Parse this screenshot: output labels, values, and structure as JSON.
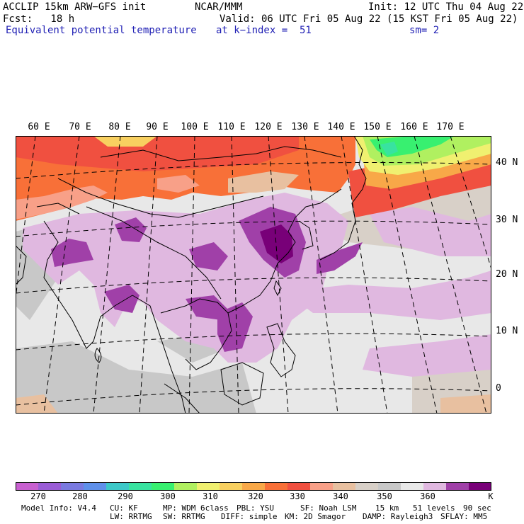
{
  "header": {
    "model": "ACCLIP 15km ARW−GFS init",
    "org": "NCAR/MMM",
    "init": "Init: 12 UTC Thu 04 Aug 22",
    "fcst": "Fcst:   18 h",
    "valid": "Valid: 06 UTC Fri 05 Aug 22 (15 KST Fri 05 Aug 22)",
    "field": "Equivalent potential temperature",
    "level": "at k−index =  51",
    "smooth": "sm= 2"
  },
  "map": {
    "lon_labels": [
      "60 E",
      "70 E",
      "80 E",
      "90 E",
      "100 E",
      "110 E",
      "120 E",
      "130 E",
      "140 E",
      "150 E",
      "160 E",
      "170 E"
    ],
    "lat_labels": [
      "40 N",
      "30 N",
      "20 N",
      "10 N",
      "0"
    ],
    "projection": "Lambert conformal",
    "graticule": "dashed"
  },
  "colorbar": {
    "colors": [
      "#c860d0",
      "#9a5cd6",
      "#7a7ae0",
      "#5f90ea",
      "#3cc8c8",
      "#38e3a0",
      "#38f070",
      "#b0f060",
      "#f0f070",
      "#f8d060",
      "#f8a848",
      "#f87038",
      "#f05040",
      "#f8a088",
      "#e8c0a0",
      "#d8d0c8",
      "#c8c8c8",
      "#e8e8e8",
      "#e0b8e0",
      "#a040a8",
      "#780078"
    ],
    "labels": [
      "270",
      "280",
      "290",
      "300",
      "310",
      "320",
      "330",
      "340",
      "350",
      "360"
    ],
    "unit": "K"
  },
  "footer": {
    "line1": [
      "Model Info: V4.4",
      "CU: KF",
      "MP: WDM 6class",
      "PBL: YSU",
      "SF: Noah LSM",
      "15 km",
      "51 levels",
      "90 sec"
    ],
    "line2": [
      "LW: RRTMG",
      "SW: RRTMG",
      "DIFF: simple",
      "KM: 2D Smagor",
      "DAMP: Rayleigh3",
      "SFLAY: MM5"
    ]
  }
}
